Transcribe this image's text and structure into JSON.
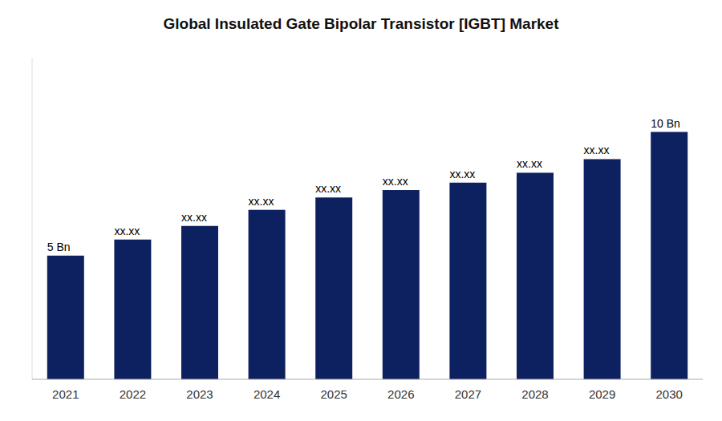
{
  "chart_data": {
    "type": "bar",
    "title": "Global Insulated Gate Bipolar Transistor [IGBT]  Market",
    "categories": [
      "2021",
      "2022",
      "2023",
      "2024",
      "2025",
      "2026",
      "2027",
      "2028",
      "2029",
      "2030"
    ],
    "values": [
      5.0,
      5.65,
      6.2,
      6.85,
      7.35,
      7.65,
      7.95,
      8.35,
      8.9,
      10.0
    ],
    "value_labels": [
      "5 Bn",
      "xx.xx",
      "xx.xx",
      "xx.xx",
      "xx.xx",
      "xx.xx",
      "xx.xx",
      "xx.xx",
      "xx.xx",
      "10 Bn"
    ],
    "data_labels": true,
    "color": "#0d2060",
    "ylim": [
      0,
      13.0
    ],
    "yticks": [],
    "grid": false,
    "tick_labels": "x"
  }
}
